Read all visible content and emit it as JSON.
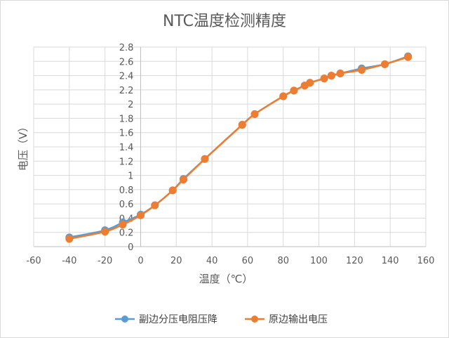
{
  "chart_data": {
    "type": "line",
    "title": "NTC温度检测精度",
    "xlabel": "温度（℃）",
    "ylabel": "电压（V）",
    "xlim": [
      -60,
      160
    ],
    "ylim": [
      0,
      2.8
    ],
    "xticks": [
      -60,
      -40,
      -20,
      0,
      20,
      40,
      60,
      80,
      100,
      120,
      140,
      160
    ],
    "yticks": [
      0,
      0.2,
      0.4,
      0.6,
      0.8,
      1,
      1.2,
      1.4,
      1.6,
      1.8,
      2,
      2.2,
      2.4,
      2.6,
      2.8
    ],
    "grid": true,
    "legend_position": "bottom",
    "series": [
      {
        "name": "副边分压电阻压降",
        "color": "#5b9bd5",
        "x": [
          -40,
          -20,
          -10,
          0,
          8,
          18,
          24,
          36,
          57,
          64,
          80,
          86,
          92,
          95,
          103,
          107,
          112,
          124,
          137,
          150
        ],
        "y": [
          0.13,
          0.23,
          0.34,
          0.45,
          0.58,
          0.79,
          0.95,
          1.23,
          1.71,
          1.86,
          2.11,
          2.19,
          2.26,
          2.3,
          2.36,
          2.4,
          2.43,
          2.5,
          2.56,
          2.67
        ]
      },
      {
        "name": "原边输出电压",
        "color": "#ed7d31",
        "x": [
          -40,
          -20,
          -10,
          0,
          8,
          18,
          24,
          36,
          57,
          64,
          80,
          86,
          92,
          95,
          103,
          107,
          112,
          124,
          137,
          150
        ],
        "y": [
          0.11,
          0.21,
          0.31,
          0.44,
          0.58,
          0.79,
          0.94,
          1.23,
          1.71,
          1.86,
          2.11,
          2.19,
          2.26,
          2.3,
          2.36,
          2.4,
          2.43,
          2.48,
          2.56,
          2.66
        ]
      }
    ]
  }
}
